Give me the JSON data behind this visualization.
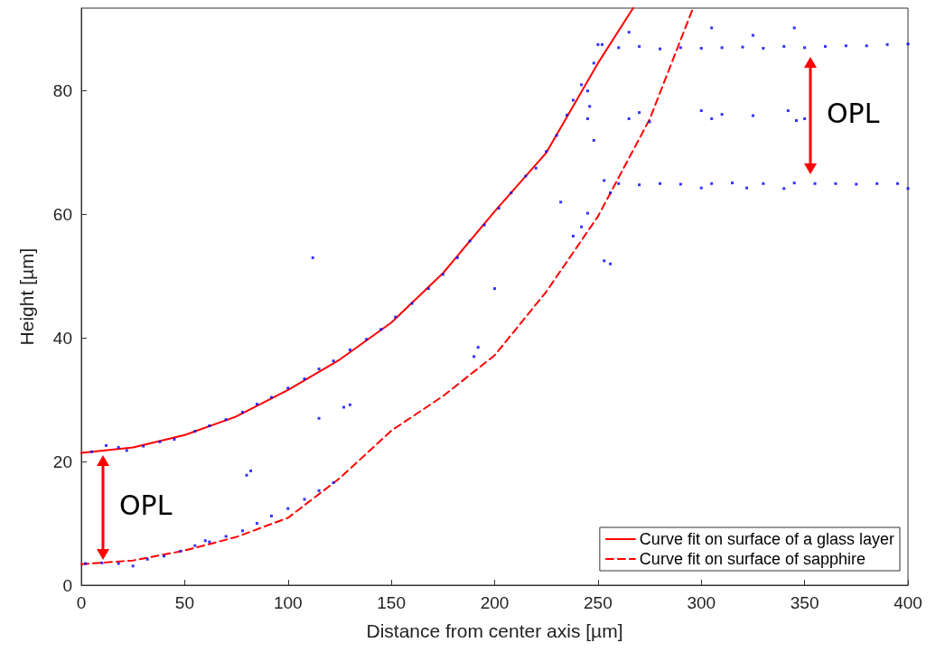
{
  "chart_data": {
    "type": "scatter",
    "xlabel": "Distance from center axis [µm]",
    "ylabel": "Height [µm]",
    "xlim": [
      0,
      400
    ],
    "xticks": [
      0,
      50,
      100,
      150,
      200,
      250,
      300,
      350,
      400
    ],
    "ylim": [
      0,
      93.4
    ],
    "yticks": [
      0,
      20,
      40,
      60,
      80
    ],
    "grid": false,
    "legend": "bottom right",
    "annotations": [
      "OPL",
      "OPL"
    ],
    "series": [
      {
        "type": "scatter",
        "color": "#0000ff",
        "marker": "square",
        "x": [
          5,
          12,
          18,
          22,
          30,
          38,
          45,
          55,
          62,
          70,
          78,
          85,
          92,
          100,
          108,
          115,
          122,
          130,
          138,
          145,
          152,
          160,
          168,
          175,
          182,
          188,
          195,
          202,
          208,
          215,
          220,
          225,
          230,
          235,
          238,
          242,
          245,
          248,
          250,
          246,
          252,
          260,
          265,
          270,
          280,
          290,
          300,
          305,
          310,
          320,
          325,
          330,
          340,
          345,
          350,
          360,
          370,
          380,
          390,
          400,
          253,
          256,
          260,
          270,
          280,
          290,
          300,
          305,
          315,
          322,
          330,
          340,
          345,
          355,
          365,
          375,
          385,
          395,
          400,
          265,
          270,
          275,
          300,
          305,
          310,
          325,
          342,
          346,
          350,
          253,
          256,
          242,
          245,
          238,
          232,
          200,
          190,
          192,
          115,
          127,
          130,
          112,
          82,
          80,
          248,
          245,
          2,
          10,
          18,
          25,
          32,
          40,
          48,
          55,
          62,
          70,
          78,
          85,
          92,
          100,
          108,
          115,
          122,
          60
        ],
        "values": [
          21.6,
          22.6,
          22.3,
          21.8,
          22.5,
          23.2,
          23.6,
          24.9,
          25.8,
          26.8,
          28.0,
          29.3,
          30.4,
          31.9,
          33.4,
          35.0,
          36.3,
          38.1,
          39.8,
          41.4,
          43.4,
          45.6,
          48.0,
          50.3,
          53.0,
          55.7,
          58.3,
          61.0,
          63.5,
          66.2,
          67.5,
          70.2,
          72.8,
          76.1,
          78.5,
          81.0,
          80.0,
          84.5,
          87.5,
          77.5,
          87.5,
          87.0,
          89.5,
          87.2,
          86.8,
          87.0,
          86.9,
          90.2,
          87.0,
          87.1,
          89.0,
          86.9,
          87.2,
          90.2,
          87.0,
          87.2,
          87.3,
          87.3,
          87.5,
          87.6,
          65.5,
          63.5,
          65.0,
          64.8,
          65.0,
          64.9,
          64.3,
          65.0,
          65.1,
          64.3,
          65.0,
          64.2,
          65.1,
          65.0,
          65.0,
          64.9,
          65.0,
          65.0,
          64.2,
          75.5,
          76.5,
          75.0,
          76.8,
          75.5,
          76.2,
          76.0,
          76.8,
          75.2,
          75.5,
          52.5,
          52.0,
          58.0,
          60.2,
          56.5,
          62.0,
          48.0,
          37.0,
          38.5,
          27.0,
          28.8,
          29.2,
          53.0,
          18.5,
          17.8,
          72.0,
          75.5,
          3.5,
          3.6,
          3.5,
          3.1,
          4.2,
          4.7,
          5.5,
          6.4,
          7.0,
          7.9,
          8.8,
          10.0,
          11.2,
          12.4,
          13.9,
          15.3,
          16.6,
          7.2
        ]
      },
      {
        "type": "line",
        "name": "Curve fit on surface of a glass layer",
        "color": "#ff0000",
        "line_style": "solid",
        "marker": "none",
        "x": [
          0,
          25,
          50,
          75,
          100,
          125,
          150,
          175,
          200,
          225,
          250,
          267
        ],
        "values": [
          21.4,
          22.3,
          24.3,
          27.3,
          31.6,
          36.5,
          42.5,
          50.5,
          60.5,
          70,
          84.5,
          93.4
        ]
      },
      {
        "type": "line",
        "name": "Curve fit on surface of sapphire",
        "color": "#ff0000",
        "line_style": "dashed",
        "marker": "none",
        "x": [
          0,
          25,
          50,
          75,
          100,
          125,
          150,
          175,
          200,
          225,
          250,
          275,
          296
        ],
        "values": [
          3.4,
          4.0,
          5.6,
          7.8,
          10.9,
          17.3,
          25.0,
          30.6,
          37.2,
          47.5,
          59.7,
          75.4,
          93.4
        ]
      }
    ]
  }
}
